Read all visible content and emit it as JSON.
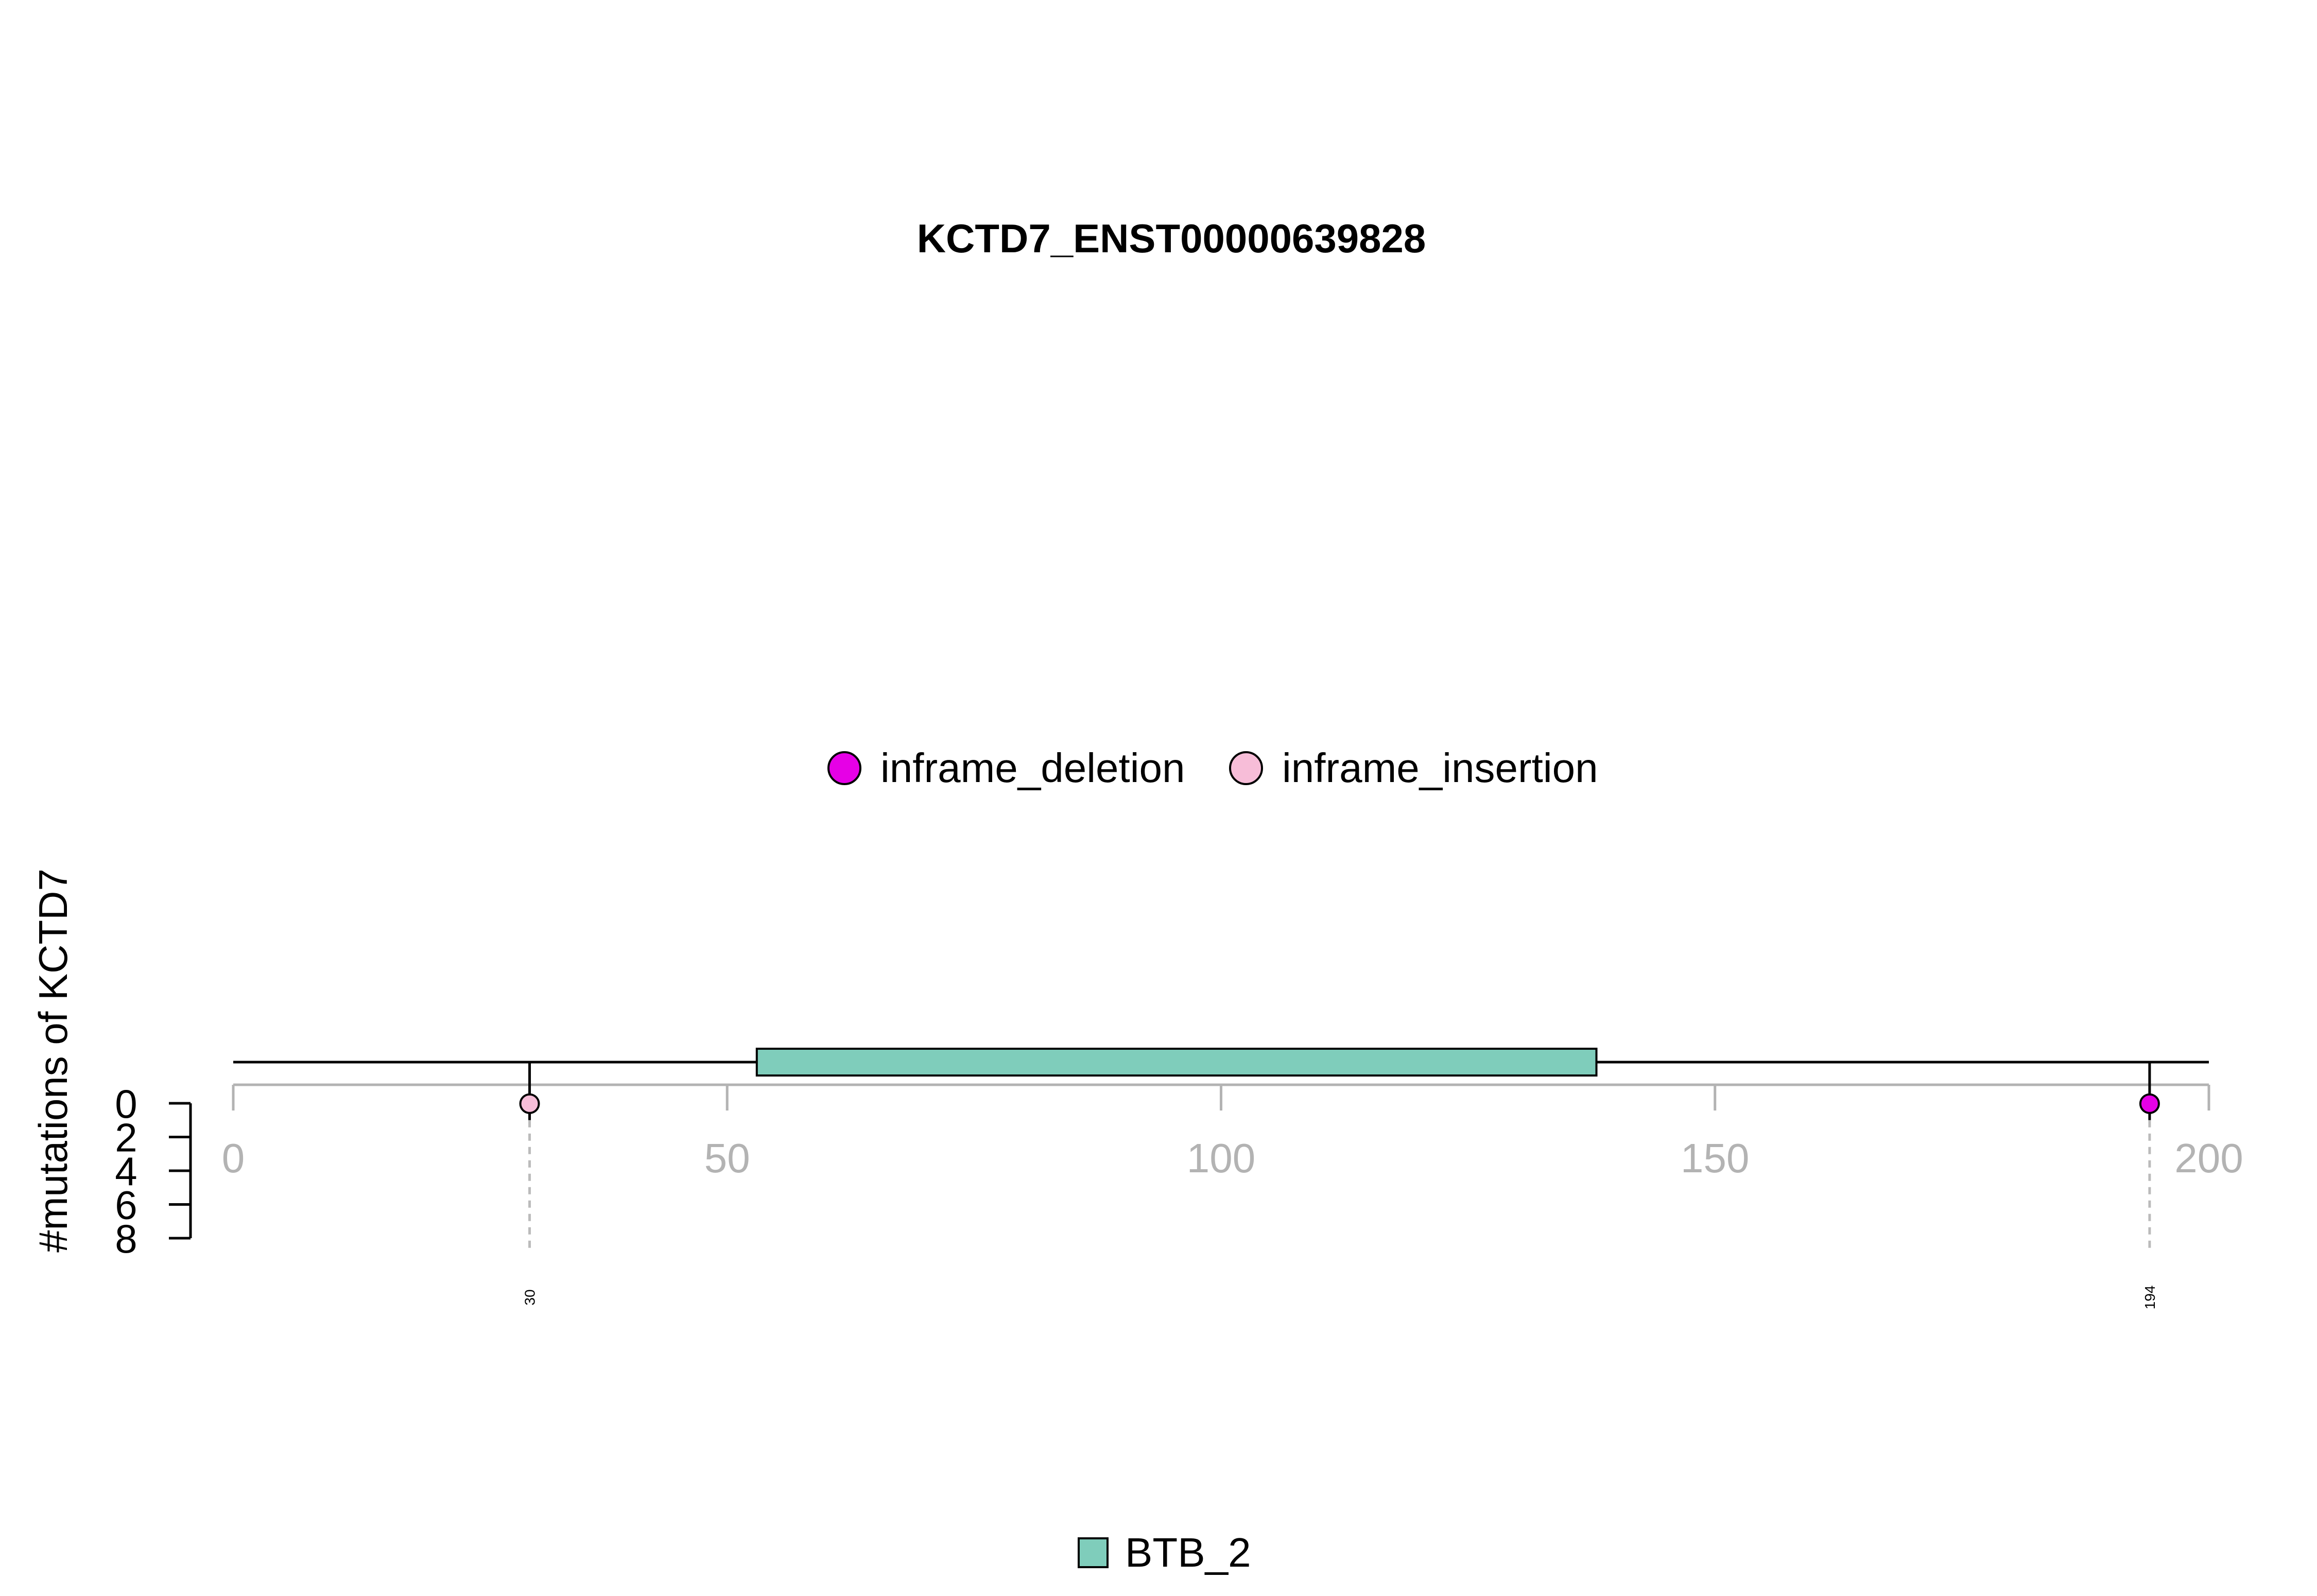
{
  "chart_data": {
    "type": "lollipop",
    "title": "KCTD7_ENST00000639828",
    "ylabel": "#mutations of KCTD7",
    "xlim": [
      0,
      200
    ],
    "x_ticks": [
      0,
      50,
      100,
      150,
      200
    ],
    "y_ticks": [
      0,
      2,
      4,
      6,
      8
    ],
    "ylim": [
      0,
      8
    ],
    "mutation_legend": [
      {
        "name": "inframe_deletion",
        "color": "#E600E6"
      },
      {
        "name": "inframe_insertion",
        "color": "#F7BDD8"
      }
    ],
    "mutations": [
      {
        "position": 30,
        "label": "30",
        "count": 1,
        "type": "inframe_insertion",
        "color": "#F7BDD8"
      },
      {
        "position": 194,
        "label": "194",
        "count": 1,
        "type": "inframe_deletion",
        "color": "#E600E6"
      }
    ],
    "domains": [
      {
        "name": "BTB_2",
        "start": 53,
        "end": 138,
        "color": "#7FCDBB"
      }
    ],
    "protein_length": 200
  }
}
